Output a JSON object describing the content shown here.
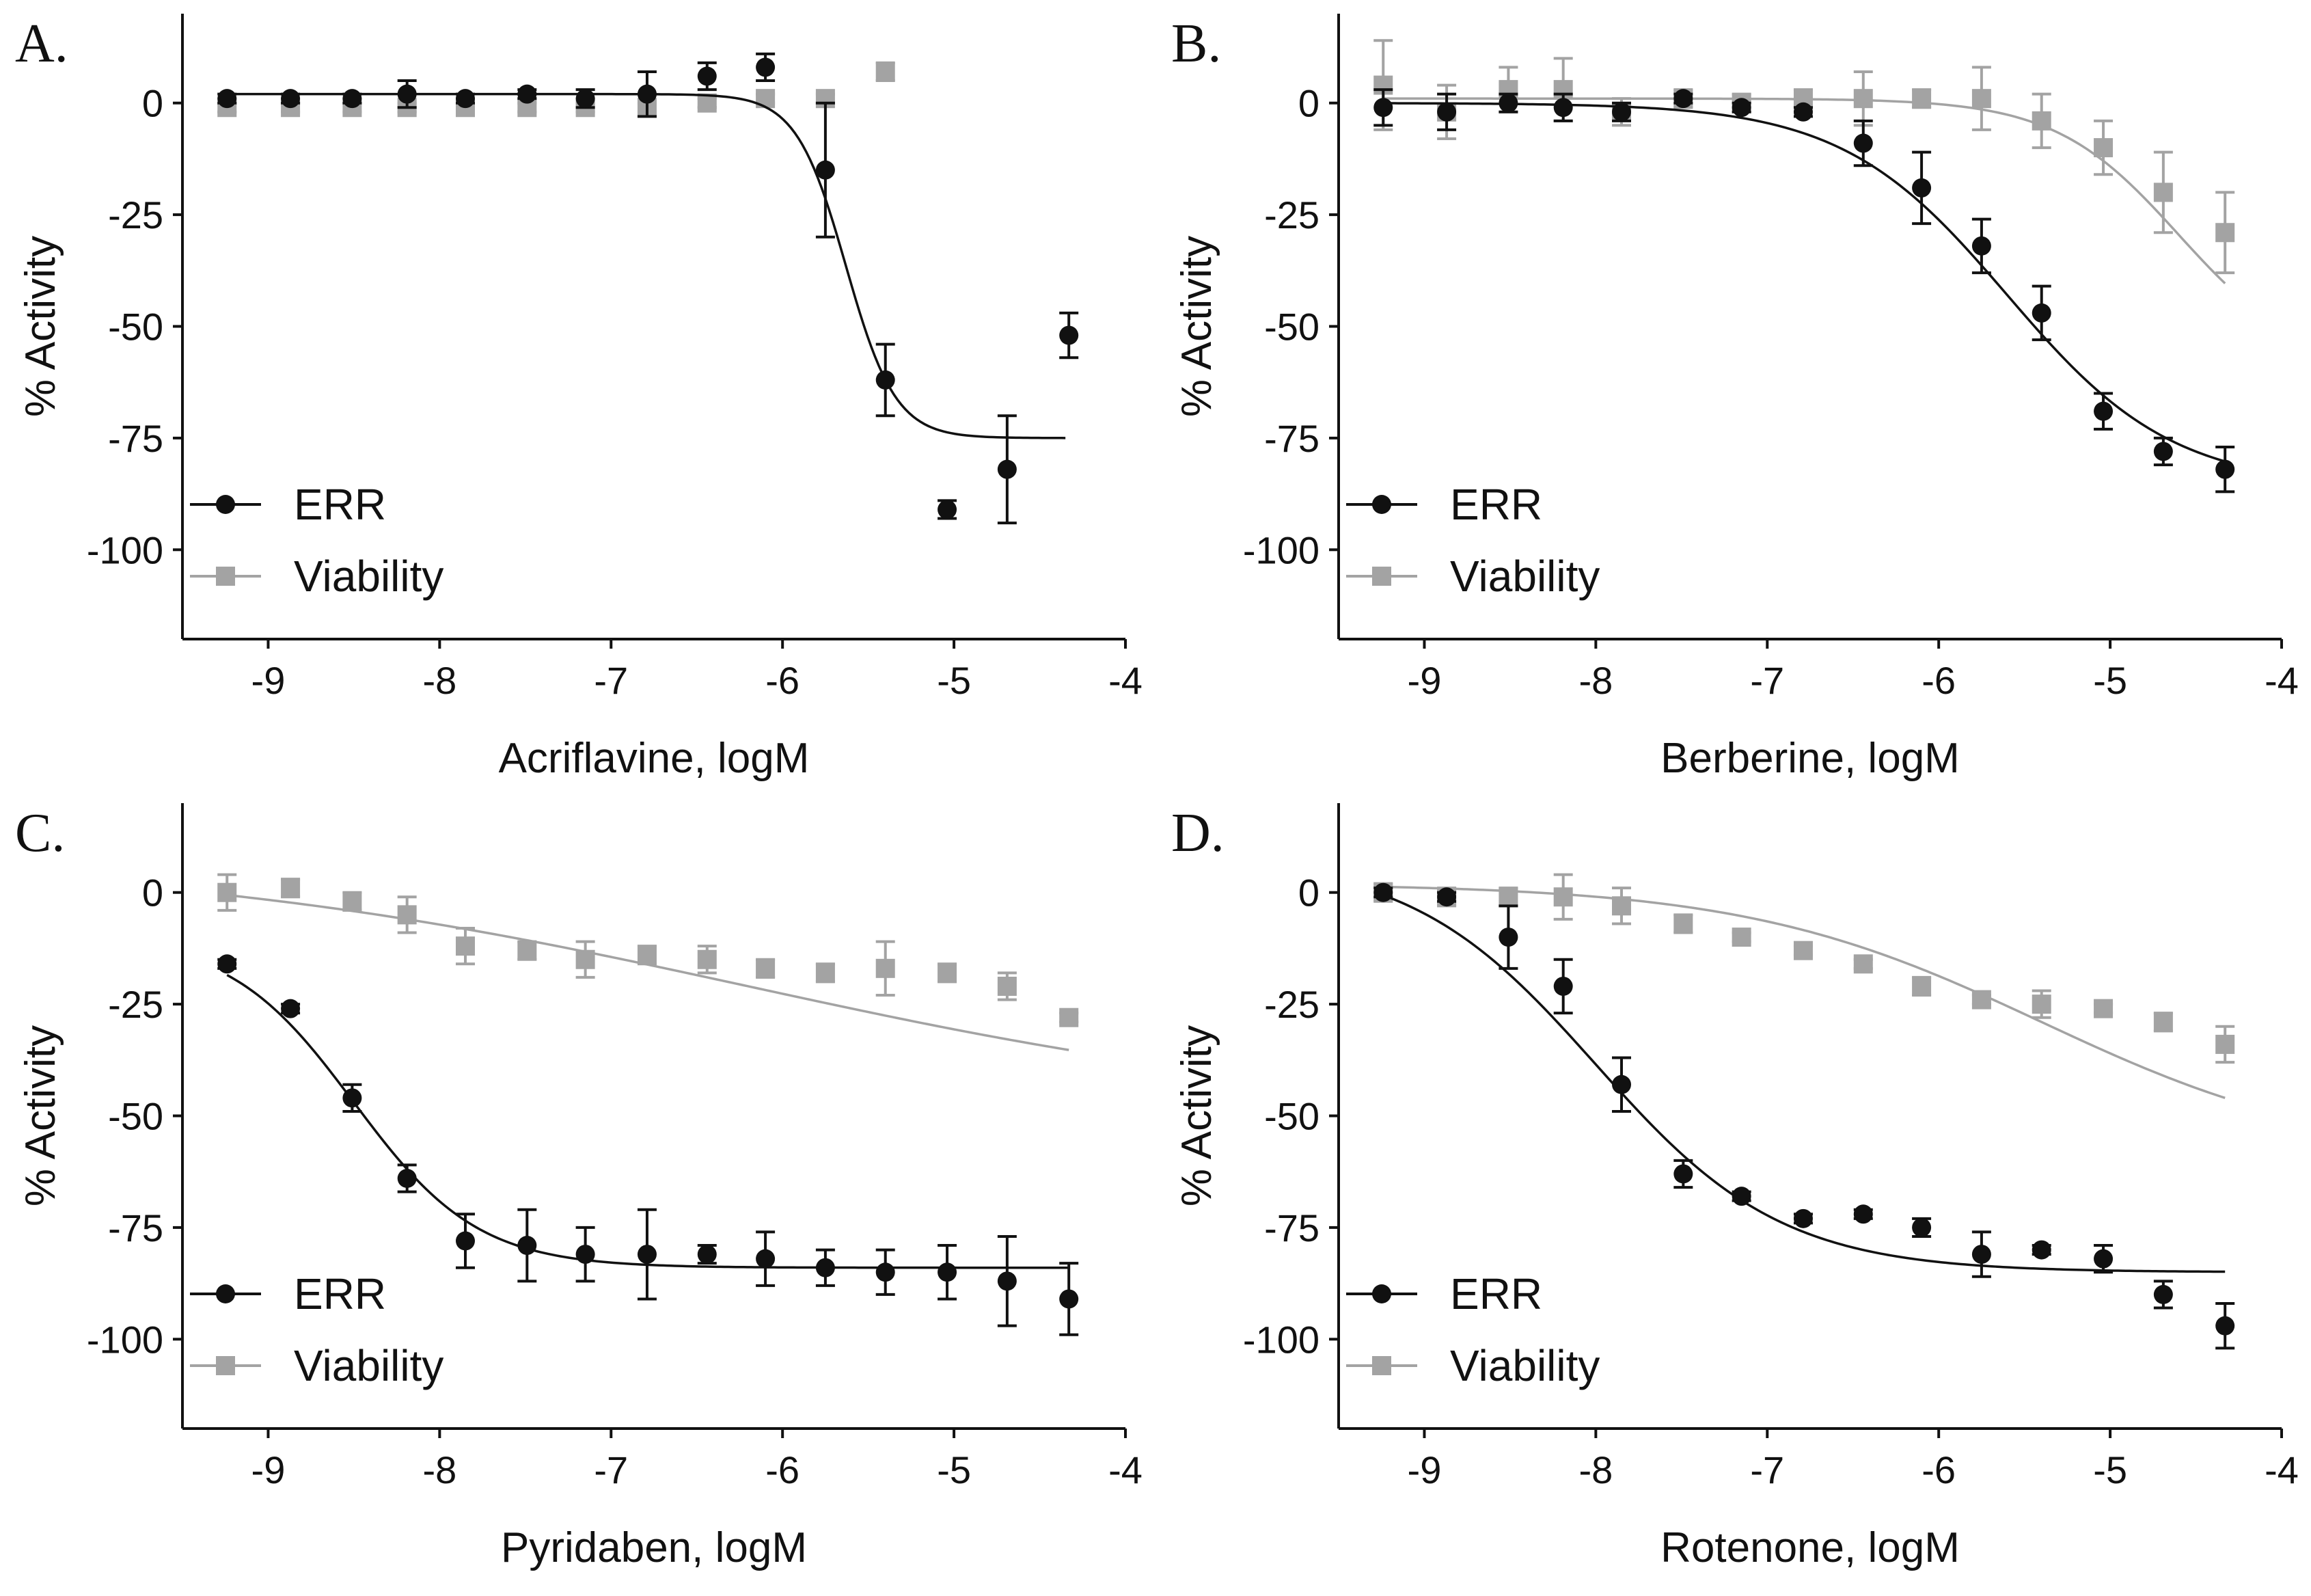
{
  "figure": {
    "series_styles": {
      "ERR": {
        "color": "#111111",
        "marker": "circle"
      },
      "Viability": {
        "color": "#a3a3a3",
        "marker": "square"
      }
    }
  },
  "chart_data": [
    {
      "type": "scatter",
      "panel": "A.",
      "xlabel": "Acriflavine, logM",
      "ylabel": "% Activity",
      "xlim": [
        -9.5,
        -4
      ],
      "ylim": [
        -120,
        20
      ],
      "xticks": [
        -9,
        -8,
        -7,
        -6,
        -5,
        -4
      ],
      "yticks": [
        0,
        -25,
        -50,
        -75,
        -100
      ],
      "legend": [
        "ERR",
        "Viability"
      ],
      "legend_position": "bottom-left",
      "series": [
        {
          "name": "ERR",
          "x": [
            -9.24,
            -8.87,
            -8.51,
            -8.19,
            -7.85,
            -7.49,
            -7.15,
            -6.79,
            -6.44,
            -6.1,
            -5.75,
            -5.4,
            -5.04,
            -4.69,
            -4.33
          ],
          "y": [
            1,
            1,
            1,
            2,
            1,
            2,
            1,
            2,
            6,
            8,
            -15,
            -62,
            -91,
            -82,
            -52
          ],
          "err": [
            1,
            1,
            1,
            3,
            1,
            1,
            2,
            5,
            3,
            3,
            15,
            8,
            2,
            12,
            5
          ],
          "fit": {
            "top": 2,
            "bottom": -75,
            "logEC50": -5.63,
            "hill": -3.0,
            "x_range": [
              -9.24,
              -4.35
            ]
          }
        },
        {
          "name": "Viability",
          "x": [
            -9.24,
            -8.87,
            -8.51,
            -8.19,
            -7.85,
            -7.49,
            -7.15,
            -6.79,
            -6.44,
            -6.1,
            -5.75,
            -5.4
          ],
          "y": [
            -1,
            -1,
            -1,
            -1,
            -1,
            -1,
            -1,
            -1,
            0,
            1,
            1,
            7
          ],
          "err": [
            1,
            1,
            1,
            1,
            1,
            1,
            1,
            1,
            1,
            1,
            1,
            2
          ],
          "fit": {
            "top": -1,
            "bottom": 100,
            "logEC50": -4.2,
            "hill": 1.6,
            "x_range": [
              -9.24,
              -4.9
            ]
          }
        }
      ]
    },
    {
      "type": "scatter",
      "panel": "B.",
      "xlabel": "Berberine, logM",
      "ylabel": "% Activity",
      "xlim": [
        -9.5,
        -4
      ],
      "ylim": [
        -120,
        20
      ],
      "xticks": [
        -9,
        -8,
        -7,
        -6,
        -5,
        -4
      ],
      "yticks": [
        0,
        -25,
        -50,
        -75,
        -100
      ],
      "legend": [
        "ERR",
        "Viability"
      ],
      "legend_position": "bottom-left",
      "series": [
        {
          "name": "ERR",
          "x": [
            -9.24,
            -8.87,
            -8.51,
            -8.19,
            -7.85,
            -7.49,
            -7.15,
            -6.79,
            -6.44,
            -6.1,
            -5.75,
            -5.4,
            -5.04,
            -4.69,
            -4.33
          ],
          "y": [
            -1,
            -2,
            0,
            -1,
            -2,
            1,
            -1,
            -2,
            -9,
            -19,
            -32,
            -47,
            -69,
            -78,
            -82
          ],
          "err": [
            4,
            4,
            2,
            3,
            2,
            1,
            1,
            1,
            5,
            8,
            6,
            6,
            4,
            3,
            5
          ],
          "fit": {
            "top": 0,
            "bottom": -86,
            "logEC50": -5.6,
            "hill": -0.9,
            "x_range": [
              -9.24,
              -4.33
            ]
          }
        },
        {
          "name": "Viability",
          "x": [
            -9.24,
            -8.87,
            -8.51,
            -8.19,
            -7.85,
            -7.49,
            -7.15,
            -6.79,
            -6.44,
            -6.1,
            -5.75,
            -5.4,
            -5.04,
            -4.69,
            -4.33
          ],
          "y": [
            4,
            -2,
            3,
            3,
            -2,
            1,
            0,
            1,
            1,
            1,
            1,
            -4,
            -10,
            -20,
            -29
          ],
          "err": [
            10,
            6,
            5,
            7,
            3,
            2,
            2,
            2,
            6,
            2,
            7,
            6,
            6,
            9,
            9
          ],
          "fit": {
            "top": 1,
            "bottom": -60,
            "logEC50": -4.6,
            "hill": -1.2,
            "x_range": [
              -9.24,
              -4.33
            ]
          }
        }
      ]
    },
    {
      "type": "scatter",
      "panel": "C.",
      "xlabel": "Pyridaben, logM",
      "ylabel": "% Activity",
      "xlim": [
        -9.5,
        -4
      ],
      "ylim": [
        -120,
        20
      ],
      "xticks": [
        -9,
        -8,
        -7,
        -6,
        -5,
        -4
      ],
      "yticks": [
        0,
        -25,
        -50,
        -75,
        -100
      ],
      "legend": [
        "ERR",
        "Viability"
      ],
      "legend_position": "bottom-left",
      "series": [
        {
          "name": "ERR",
          "x": [
            -9.24,
            -8.87,
            -8.51,
            -8.19,
            -7.85,
            -7.49,
            -7.15,
            -6.79,
            -6.44,
            -6.1,
            -5.75,
            -5.4,
            -5.04,
            -4.69,
            -4.33
          ],
          "y": [
            -16,
            -26,
            -46,
            -64,
            -78,
            -79,
            -81,
            -81,
            -81,
            -82,
            -84,
            -85,
            -85,
            -87,
            -91
          ],
          "err": [
            1,
            1,
            3,
            3,
            6,
            8,
            6,
            10,
            2,
            6,
            4,
            5,
            6,
            10,
            8
          ],
          "fit": {
            "top": -10,
            "bottom": -84,
            "logEC50": -8.5,
            "hill": -1.2,
            "x_range": [
              -9.24,
              -4.33
            ]
          }
        },
        {
          "name": "Viability",
          "x": [
            -9.24,
            -8.87,
            -8.51,
            -8.19,
            -7.85,
            -7.49,
            -7.15,
            -6.79,
            -6.44,
            -6.1,
            -5.75,
            -5.4,
            -5.04,
            -4.69,
            -4.33
          ],
          "y": [
            0,
            1,
            -2,
            -5,
            -12,
            -13,
            -15,
            -14,
            -15,
            -17,
            -18,
            -17,
            -18,
            -21,
            -28
          ],
          "err": [
            4,
            2,
            2,
            4,
            4,
            2,
            4,
            2,
            3,
            2,
            2,
            6,
            2,
            3,
            1
          ],
          "fit": {
            "top": 8,
            "bottom": -50,
            "logEC50": -6.2,
            "hill": -0.25,
            "x_range": [
              -9.24,
              -4.33
            ]
          }
        }
      ]
    },
    {
      "type": "scatter",
      "panel": "D.",
      "xlabel": "Rotenone, logM",
      "ylabel": "% Activity",
      "xlim": [
        -9.5,
        -4
      ],
      "ylim": [
        -120,
        20
      ],
      "xticks": [
        -9,
        -8,
        -7,
        -6,
        -5,
        -4
      ],
      "yticks": [
        0,
        -25,
        -50,
        -75,
        -100
      ],
      "legend": [
        "ERR",
        "Viability"
      ],
      "legend_position": "bottom-left",
      "series": [
        {
          "name": "ERR",
          "x": [
            -9.24,
            -8.87,
            -8.51,
            -8.19,
            -7.85,
            -7.49,
            -7.15,
            -6.79,
            -6.44,
            -6.1,
            -5.75,
            -5.4,
            -5.04,
            -4.69,
            -4.33
          ],
          "y": [
            0,
            -1,
            -10,
            -21,
            -43,
            -63,
            -68,
            -73,
            -72,
            -75,
            -81,
            -80,
            -82,
            -90,
            -97
          ],
          "err": [
            1,
            1,
            7,
            6,
            6,
            3,
            1,
            1,
            1,
            2,
            5,
            1,
            3,
            3,
            5
          ],
          "fit": {
            "top": 8,
            "bottom": -85,
            "logEC50": -8.0,
            "hill": -0.8,
            "x_range": [
              -9.24,
              -4.33
            ]
          }
        },
        {
          "name": "Viability",
          "x": [
            -9.24,
            -8.87,
            -8.51,
            -8.19,
            -7.85,
            -7.49,
            -7.15,
            -6.79,
            -6.44,
            -6.1,
            -5.75,
            -5.4,
            -5.04,
            -4.69,
            -4.33
          ],
          "y": [
            0,
            -1,
            -1,
            -1,
            -3,
            -7,
            -10,
            -13,
            -16,
            -21,
            -24,
            -25,
            -26,
            -29,
            -34
          ],
          "err": [
            2,
            2,
            2,
            5,
            4,
            2,
            1,
            1,
            1,
            2,
            1,
            3,
            1,
            2,
            4
          ],
          "fit": {
            "top": 2,
            "bottom": -60,
            "logEC50": -5.4,
            "hill": -0.5,
            "x_range": [
              -9.24,
              -4.33
            ]
          }
        }
      ]
    }
  ]
}
